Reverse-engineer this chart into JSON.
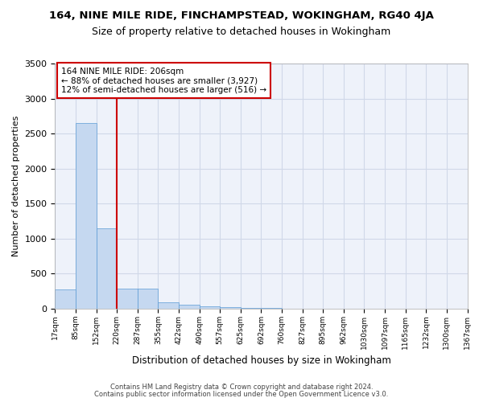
{
  "title": "164, NINE MILE RIDE, FINCHAMPSTEAD, WOKINGHAM, RG40 4JA",
  "subtitle": "Size of property relative to detached houses in Wokingham",
  "xlabel": "Distribution of detached houses by size in Wokingham",
  "ylabel": "Number of detached properties",
  "bin_labels": [
    "17sqm",
    "85sqm",
    "152sqm",
    "220sqm",
    "287sqm",
    "355sqm",
    "422sqm",
    "490sqm",
    "557sqm",
    "625sqm",
    "692sqm",
    "760sqm",
    "827sqm",
    "895sqm",
    "962sqm",
    "1030sqm",
    "1097sqm",
    "1165sqm",
    "1232sqm",
    "1300sqm",
    "1367sqm"
  ],
  "bar_values": [
    280,
    2650,
    1150,
    290,
    290,
    90,
    60,
    35,
    20,
    5,
    5,
    3,
    2,
    1,
    1,
    1,
    1,
    0,
    0,
    0
  ],
  "bar_color": "#c5d8f0",
  "bar_edge_color": "#5b9bd5",
  "grid_color": "#d0d8e8",
  "background_color": "#eef2fa",
  "annotation_line1": "164 NINE MILE RIDE: 206sqm",
  "annotation_line2": "← 88% of detached houses are smaller (3,927)",
  "annotation_line3": "12% of semi-detached houses are larger (516) →",
  "vline_color": "#cc0000",
  "annotation_box_edgecolor": "#cc0000",
  "vline_x_index": 3.0,
  "ylim": [
    0,
    3500
  ],
  "yticks": [
    0,
    500,
    1000,
    1500,
    2000,
    2500,
    3000,
    3500
  ],
  "footer_line1": "Contains HM Land Registry data © Crown copyright and database right 2024.",
  "footer_line2": "Contains public sector information licensed under the Open Government Licence v3.0."
}
